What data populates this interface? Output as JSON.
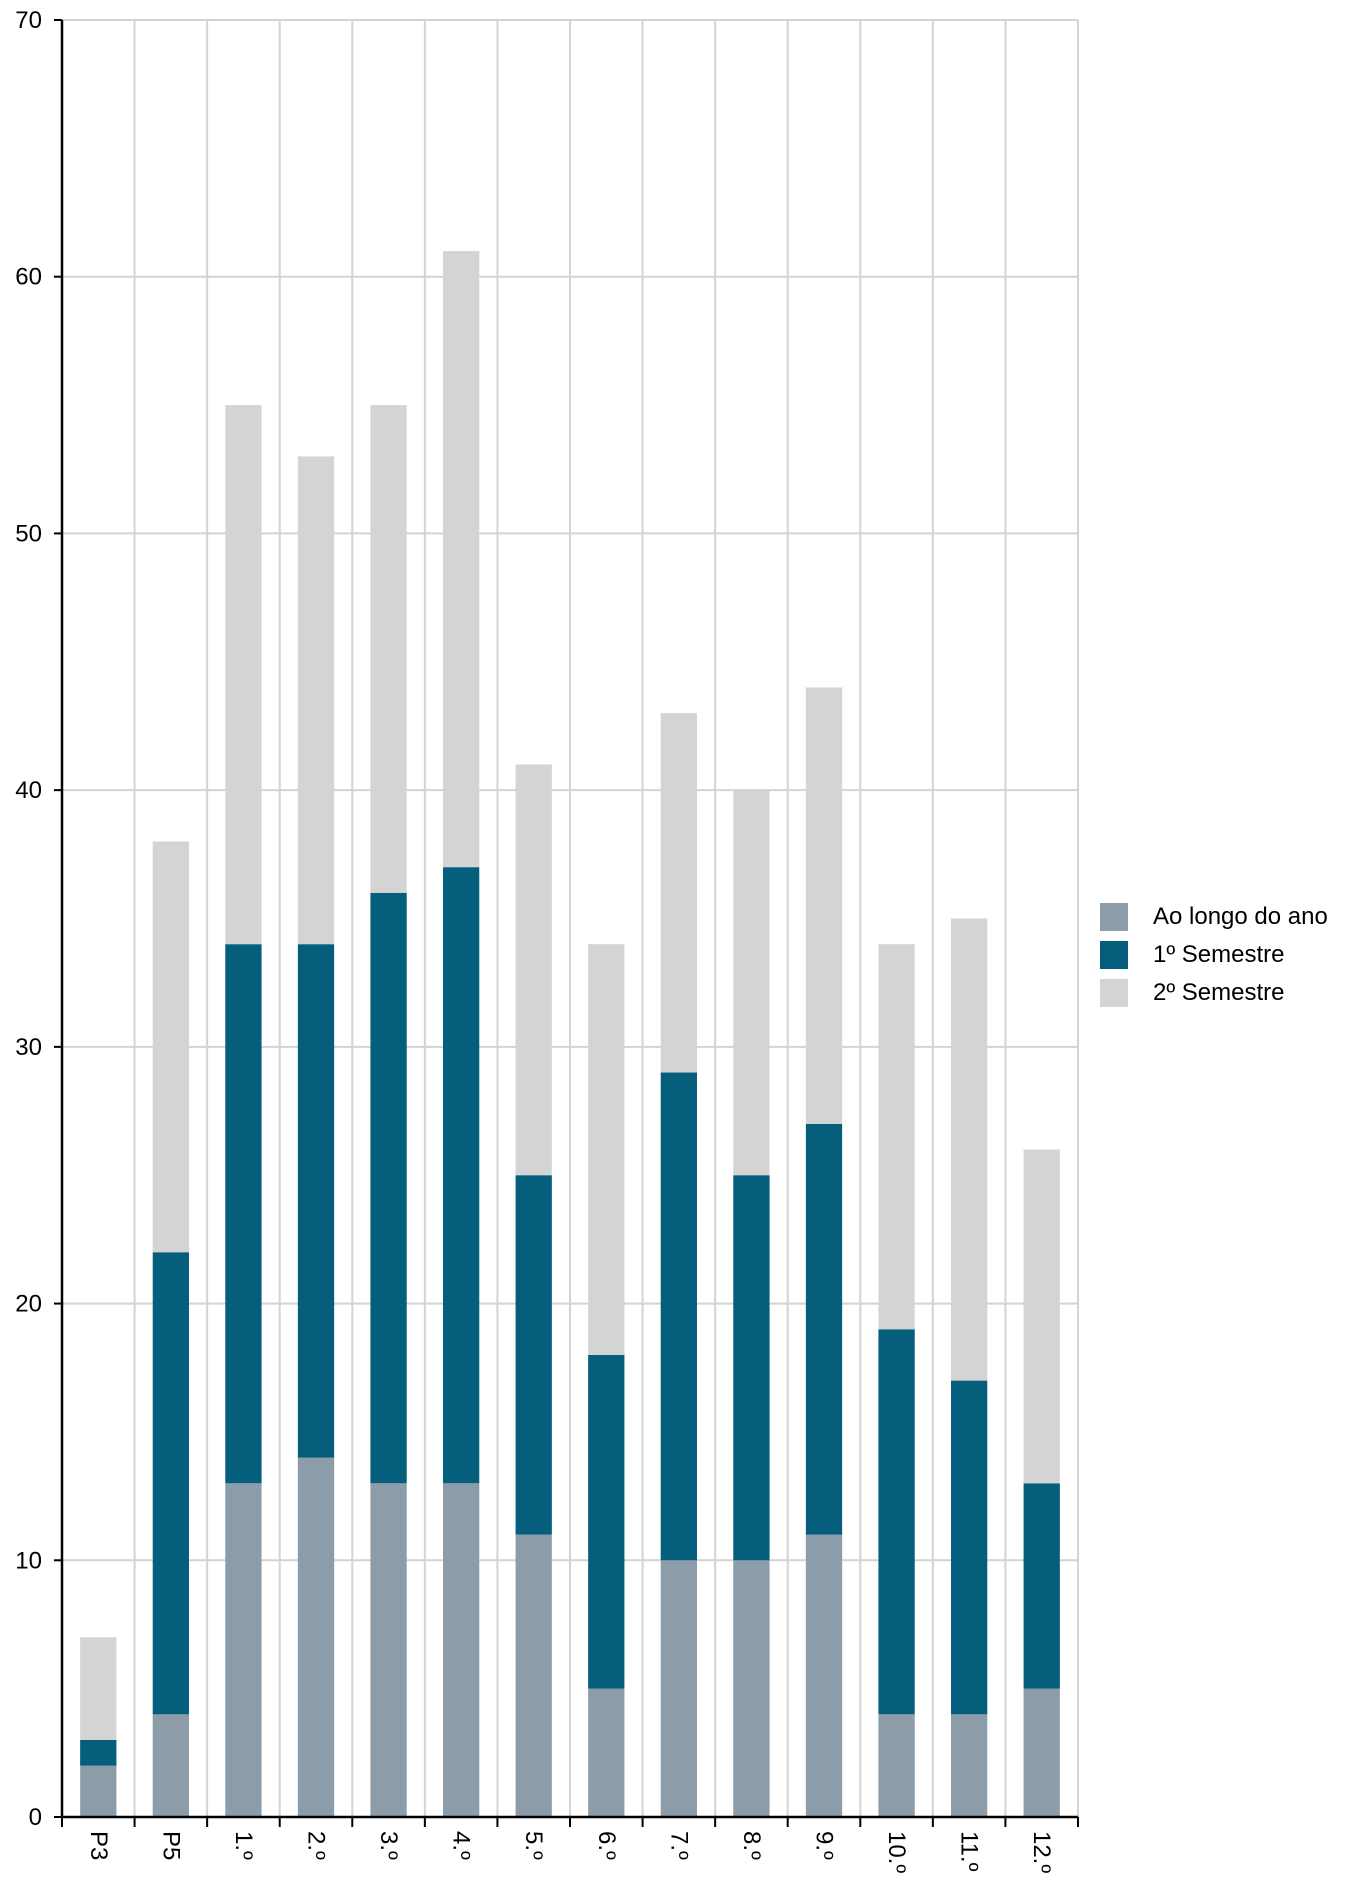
{
  "chart_data": {
    "type": "bar",
    "stacked": true,
    "categories": [
      "P3",
      "P5",
      "1.º",
      "2.º",
      "3.º",
      "4.º",
      "5.º",
      "6.º",
      "7.º",
      "8.º",
      "9.º",
      "10.º",
      "11.º",
      "12.º"
    ],
    "series": [
      {
        "name": "Ao longo do ano",
        "color": "#8c9ca8",
        "values": [
          2,
          4,
          13,
          14,
          13,
          13,
          11,
          5,
          10,
          10,
          11,
          4,
          4,
          5
        ]
      },
      {
        "name": "1º Semestre",
        "color": "#055e7b",
        "values": [
          1,
          18,
          21,
          20,
          23,
          24,
          14,
          13,
          19,
          15,
          16,
          15,
          13,
          8
        ]
      },
      {
        "name": "2º Semestre",
        "color": "#d4d4d4",
        "values": [
          4,
          16,
          21,
          19,
          19,
          24,
          16,
          16,
          14,
          15,
          17,
          15,
          18,
          13
        ]
      }
    ],
    "yticks": [
      "0",
      "10",
      "20",
      "30",
      "40",
      "50",
      "60",
      "70"
    ],
    "ylim": [
      0,
      70
    ],
    "grid": true,
    "legend_position": "right",
    "title": "",
    "xlabel": "",
    "ylabel": ""
  }
}
